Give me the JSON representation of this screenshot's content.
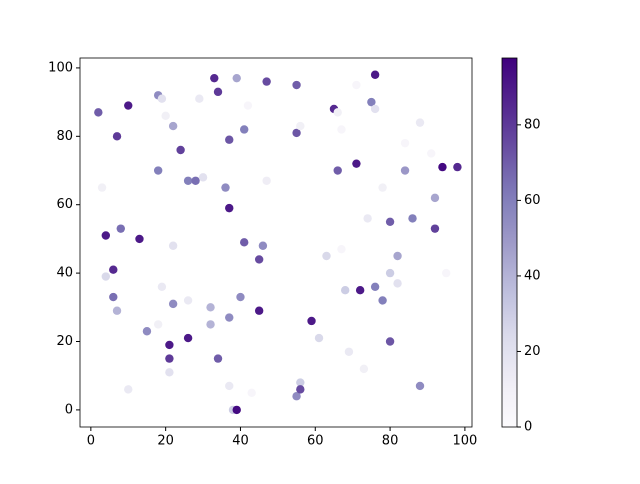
{
  "chart_data": {
    "type": "scatter",
    "colormap": "Purples",
    "x": [
      2,
      3,
      4,
      4,
      6,
      6,
      7,
      7,
      8,
      10,
      10,
      13,
      15,
      18,
      18,
      19,
      18,
      19,
      20,
      21,
      21,
      21,
      22,
      22,
      22,
      24,
      26,
      26,
      26,
      28,
      29,
      30,
      32,
      32,
      33,
      34,
      34,
      36,
      37,
      37,
      37,
      37,
      38,
      39,
      39,
      40,
      41,
      41,
      42,
      43,
      45,
      45,
      46,
      47,
      47,
      55,
      55,
      55,
      56,
      56,
      56,
      59,
      61,
      63,
      65,
      66,
      66,
      67,
      67,
      68,
      69,
      71,
      71,
      72,
      73,
      74,
      75,
      76,
      76,
      76,
      78,
      78,
      80,
      80,
      80,
      82,
      82,
      84,
      84,
      86,
      88,
      88,
      91,
      92,
      92,
      94,
      95,
      98
    ],
    "y": [
      87,
      65,
      51,
      39,
      41,
      33,
      29,
      80,
      53,
      89,
      6,
      50,
      23,
      25,
      92,
      91,
      70,
      36,
      86,
      19,
      15,
      11,
      83,
      48,
      31,
      76,
      67,
      32,
      21,
      67,
      91,
      68,
      30,
      25,
      97,
      93,
      15,
      65,
      79,
      59,
      27,
      7,
      0,
      97,
      0,
      33,
      82,
      49,
      89,
      5,
      44,
      29,
      48,
      96,
      67,
      95,
      81,
      4,
      83,
      8,
      6,
      26,
      21,
      45,
      88,
      87,
      70,
      47,
      82,
      35,
      17,
      95,
      72,
      35,
      12,
      56,
      90,
      98,
      88,
      36,
      65,
      32,
      55,
      40,
      20,
      45,
      37,
      78,
      70,
      56,
      84,
      7,
      75,
      62,
      53,
      71,
      40,
      71
    ],
    "c": [
      70,
      10,
      90,
      25,
      85,
      65,
      40,
      80,
      65,
      90,
      15,
      90,
      55,
      10,
      55,
      20,
      60,
      15,
      10,
      90,
      80,
      20,
      45,
      20,
      55,
      78,
      60,
      15,
      90,
      65,
      15,
      20,
      40,
      40,
      85,
      80,
      70,
      55,
      72,
      90,
      55,
      15,
      30,
      45,
      95,
      55,
      60,
      70,
      5,
      5,
      75,
      90,
      55,
      75,
      12,
      70,
      72,
      55,
      10,
      30,
      75,
      90,
      25,
      25,
      85,
      10,
      70,
      5,
      5,
      30,
      15,
      5,
      90,
      90,
      10,
      15,
      60,
      90,
      20,
      60,
      10,
      60,
      70,
      30,
      72,
      45,
      20,
      5,
      50,
      60,
      15,
      55,
      5,
      45,
      78,
      95,
      5,
      85
    ],
    "xlim": [
      -2.9,
      101.9
    ],
    "ylim": [
      -5,
      102.9
    ],
    "xticks": [
      0,
      20,
      40,
      60,
      80,
      100
    ],
    "yticks": [
      0,
      20,
      40,
      60,
      80,
      100
    ],
    "clim": [
      0,
      97.7
    ],
    "cticks": [
      0,
      20,
      40,
      60,
      80
    ]
  }
}
